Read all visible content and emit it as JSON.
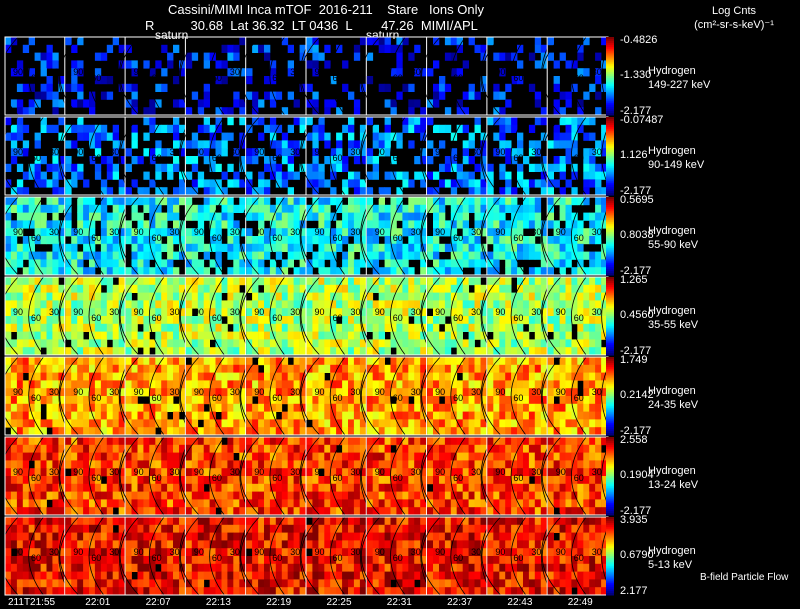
{
  "title": "Cassini/MIMI Inca mTOF  2016-211    Stare   Ions Only",
  "subtitle": "R          30.68  Lat 36.32  LT 0436  L        47.26  MIMI/APL",
  "saturn_labels": [
    "saturn",
    "saturn"
  ],
  "legend_header": {
    "line1": "Log Cnts",
    "line2": "(cm²-sr-s-keV)⁻¹"
  },
  "footer": "B-field Particle Flow",
  "chart_data": {
    "type": "heatmap",
    "title": "Cassini/MIMI Inca mTOF 2016-211 Stare Ions Only",
    "columns_times": [
      "211T21:55",
      "22:01",
      "22:07",
      "22:13",
      "22:19",
      "22:25",
      "22:31",
      "22:37",
      "22:43",
      "22:49"
    ],
    "contour_labels": [
      "90",
      "60",
      "30"
    ],
    "rows": [
      {
        "species": "Hydrogen",
        "energy": "149-227 keV",
        "max": "-0.4826",
        "mid": "-1.330",
        "min": "-2.177",
        "level": 0.15,
        "density": 0.35
      },
      {
        "species": "Hydrogen",
        "energy": "90-149 keV",
        "max": "-0.07487",
        "mid": "1.126",
        "min": "-2.177",
        "level": 0.25,
        "density": 0.55
      },
      {
        "species": "Hydrogen",
        "energy": "55-90 keV",
        "max": "0.5695",
        "mid": "0.8038",
        "min": "-2.177",
        "level": 0.38,
        "density": 0.85
      },
      {
        "species": "Hydrogen",
        "energy": "35-55 keV",
        "max": "1.265",
        "mid": "0.4560",
        "min": "-2.177",
        "level": 0.55,
        "density": 0.95
      },
      {
        "species": "Hydrogen",
        "energy": "24-35 keV",
        "max": "1.749",
        "mid": "0.2142",
        "min": "-2.177",
        "level": 0.72,
        "density": 0.97
      },
      {
        "species": "Hydrogen",
        "energy": "13-24 keV",
        "max": "2.558",
        "mid": "0.1904",
        "min": "-2.177",
        "level": 0.82,
        "density": 0.98
      },
      {
        "species": "Hydrogen",
        "energy": "5-13 keV",
        "max": "3.935",
        "mid": "0.6790",
        "min": "2.177",
        "level": 0.88,
        "density": 0.99
      }
    ]
  }
}
